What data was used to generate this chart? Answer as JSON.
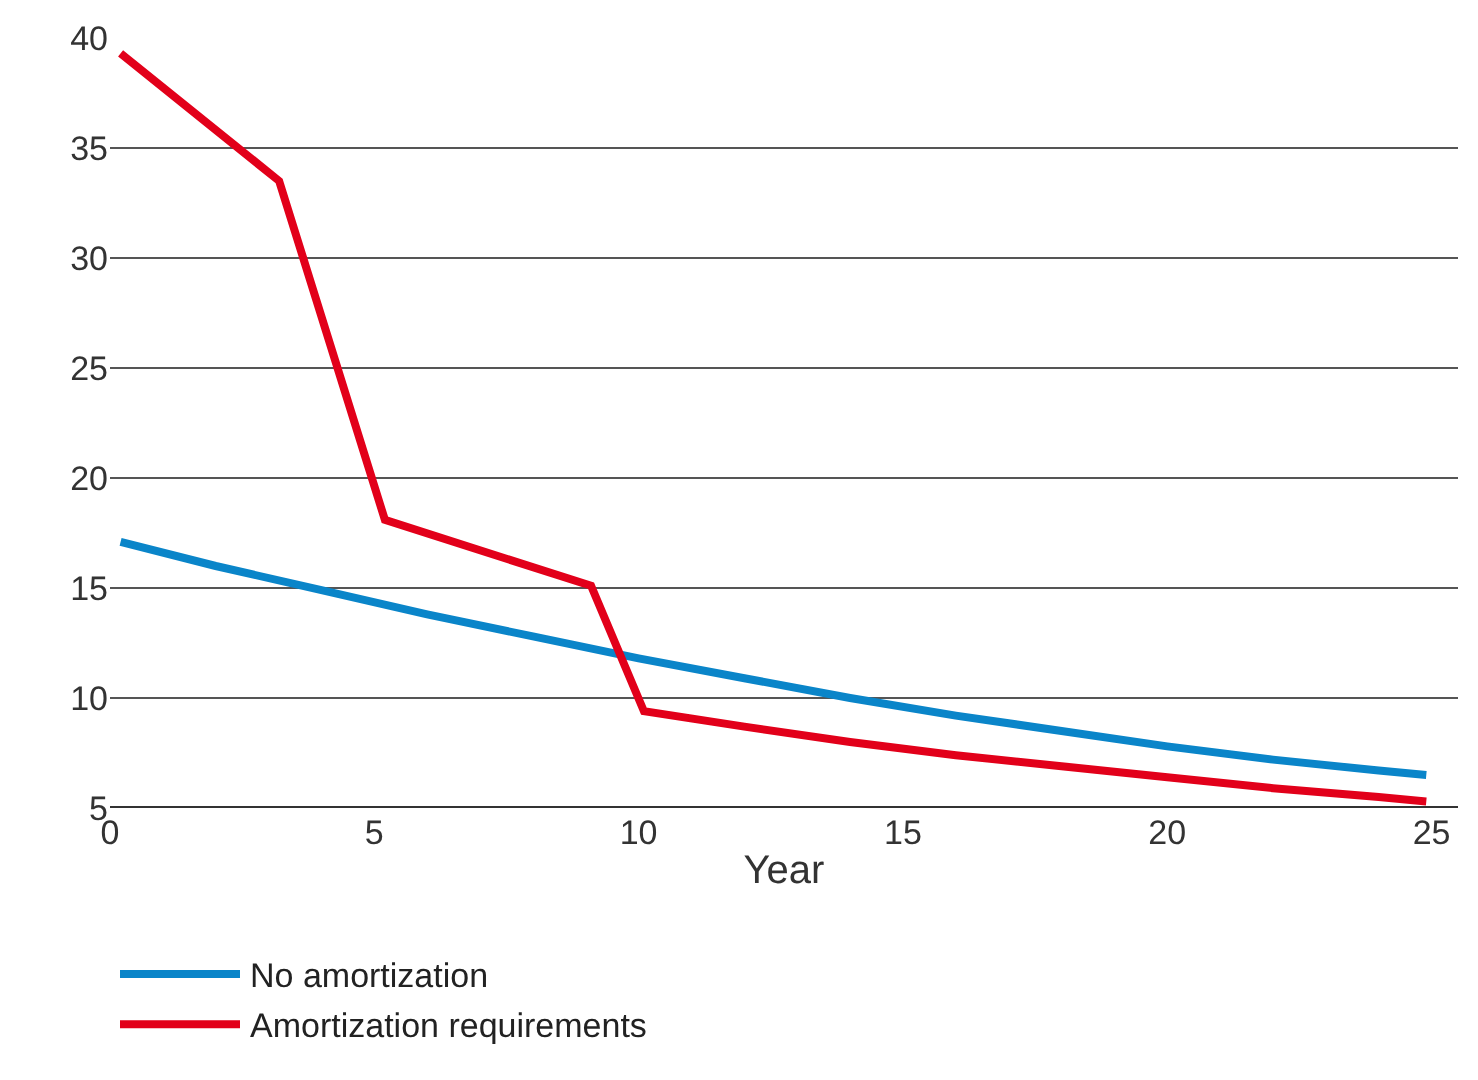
{
  "chart_data": {
    "type": "line",
    "xlabel": "Year",
    "series": [
      {
        "name": "No amortization",
        "color": "#0a85c9",
        "x": [
          0.2,
          2,
          4,
          6,
          8,
          10,
          12,
          14,
          16,
          18,
          20,
          22,
          24,
          24.9
        ],
        "values": [
          17.1,
          16.0,
          14.9,
          13.8,
          12.8,
          11.8,
          10.9,
          10.0,
          9.2,
          8.5,
          7.8,
          7.2,
          6.7,
          6.5
        ]
      },
      {
        "name": "Amortization requirements",
        "color": "#e2001a",
        "x": [
          0.2,
          3.2,
          5.2,
          9.1,
          10.1,
          12,
          14,
          16,
          18,
          20,
          22,
          24,
          24.9
        ],
        "values": [
          39.3,
          33.5,
          18.1,
          15.1,
          9.4,
          8.7,
          8.0,
          7.4,
          6.9,
          6.4,
          5.9,
          5.5,
          5.3
        ]
      }
    ],
    "xlim": [
      0,
      25.5
    ],
    "xticks": [
      0,
      5,
      10,
      15,
      20,
      25
    ],
    "ylim": [
      5,
      40
    ],
    "yticks": [
      5,
      10,
      15,
      20,
      25,
      30,
      35,
      40
    ],
    "grid": "y",
    "legend": "bottom left",
    "marker": "none",
    "line_style": "solid"
  }
}
